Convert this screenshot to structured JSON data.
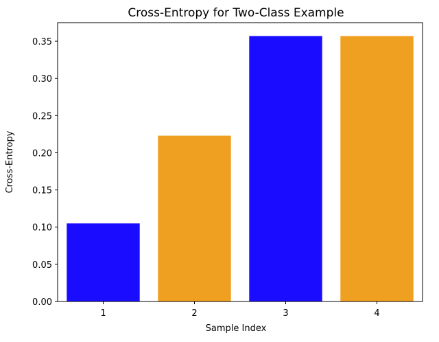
{
  "chart_data": {
    "type": "bar",
    "title": "Cross-Entropy for Two-Class Example",
    "xlabel": "Sample Index",
    "ylabel": "Cross-Entropy",
    "categories": [
      "1",
      "2",
      "3",
      "4"
    ],
    "values": [
      0.105,
      0.223,
      0.357,
      0.357
    ],
    "bar_colors": [
      "#1a0dff",
      "#f0a020",
      "#1a0dff",
      "#f0a020"
    ],
    "ylim": [
      0,
      0.375
    ],
    "yticks": [
      0.0,
      0.05,
      0.1,
      0.15,
      0.2,
      0.25,
      0.3,
      0.35
    ],
    "ytick_labels": [
      "0.00",
      "0.05",
      "0.10",
      "0.15",
      "0.20",
      "0.25",
      "0.30",
      "0.35"
    ],
    "grid": false
  }
}
